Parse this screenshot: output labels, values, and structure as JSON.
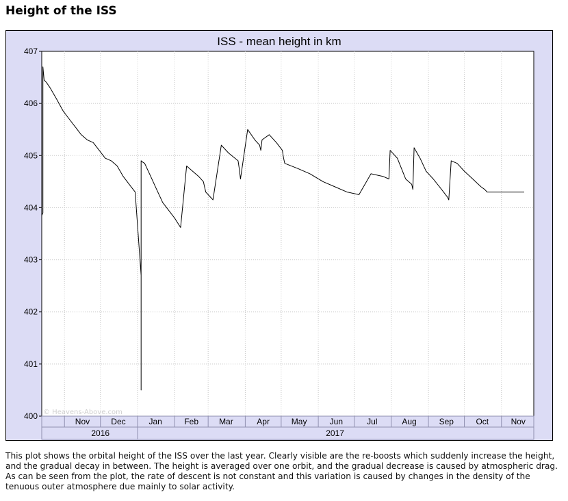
{
  "page": {
    "title": "Height of the ISS",
    "caption": "This plot shows the orbital height of the ISS over the last year. Clearly visible are the re-boosts which suddenly increase the height, and the gradual decay in between. The height is averaged over one orbit, and the gradual decrease is caused by atmospheric drag. As can be seen from the plot, the rate of descent is not constant and this variation is caused by changes in the density of the tenuous outer atmosphere due mainly to solar activity."
  },
  "chart_data": {
    "type": "line",
    "title": "ISS - mean height in km",
    "watermark": "© Heavens-Above.com",
    "xlabel": "",
    "ylabel": "",
    "ylim": [
      400,
      407
    ],
    "xlim": [
      "2016-10-13",
      "2017-11-28"
    ],
    "y_ticks": [
      400,
      401,
      402,
      403,
      404,
      405,
      406,
      407
    ],
    "month_ticks": [
      "2016-11-01",
      "2016-12-01",
      "2017-01-01",
      "2017-02-01",
      "2017-03-01",
      "2017-04-01",
      "2017-05-01",
      "2017-06-01",
      "2017-07-01",
      "2017-08-01",
      "2017-09-01",
      "2017-10-01",
      "2017-11-01"
    ],
    "month_labels": [
      {
        "label": "Nov",
        "date": "2016-11-16"
      },
      {
        "label": "Dec",
        "date": "2016-12-16"
      },
      {
        "label": "Jan",
        "date": "2017-01-16"
      },
      {
        "label": "Feb",
        "date": "2017-02-15"
      },
      {
        "label": "Mar",
        "date": "2017-03-16"
      },
      {
        "label": "Apr",
        "date": "2017-04-16"
      },
      {
        "label": "May",
        "date": "2017-05-16"
      },
      {
        "label": "Jun",
        "date": "2017-06-16"
      },
      {
        "label": "Jul",
        "date": "2017-07-16"
      },
      {
        "label": "Aug",
        "date": "2017-08-16"
      },
      {
        "label": "Sep",
        "date": "2017-09-16"
      },
      {
        "label": "Oct",
        "date": "2017-10-16"
      },
      {
        "label": "Nov",
        "date": "2017-11-15"
      }
    ],
    "year_labels": [
      {
        "label": "2016",
        "date": "2016-12-01"
      },
      {
        "label": "2017",
        "date": "2017-06-15"
      }
    ],
    "year_boundary": "2017-01-01",
    "grid": true,
    "series": [
      {
        "x": [
          "2016-10-13",
          "2016-10-14",
          "2016-10-14",
          "2016-10-15",
          "2016-10-17",
          "2016-10-20",
          "2016-10-25",
          "2016-10-31",
          "2016-11-05",
          "2016-11-10",
          "2016-11-15",
          "2016-11-20",
          "2016-11-25",
          "2016-11-30",
          "2016-12-05",
          "2016-12-10",
          "2016-12-15",
          "2016-12-20",
          "2016-12-25",
          "2016-12-30",
          "2017-01-04",
          "2017-01-04",
          "2017-01-04",
          "2017-01-04",
          "2017-01-05",
          "2017-01-07",
          "2017-01-12",
          "2017-01-17",
          "2017-01-22",
          "2017-01-27",
          "2017-02-01",
          "2017-02-06",
          "2017-02-11",
          "2017-02-16",
          "2017-02-21",
          "2017-02-25",
          "2017-02-26",
          "2017-02-27",
          "2017-03-05",
          "2017-03-12",
          "2017-03-18",
          "2017-03-26",
          "2017-03-27",
          "2017-03-28",
          "2017-04-03",
          "2017-04-09",
          "2017-04-13",
          "2017-04-14",
          "2017-04-15",
          "2017-04-21",
          "2017-04-27",
          "2017-05-02",
          "2017-05-03",
          "2017-05-04",
          "2017-05-15",
          "2017-05-25",
          "2017-06-05",
          "2017-06-15",
          "2017-06-25",
          "2017-07-05",
          "2017-07-15",
          "2017-07-25",
          "2017-07-30",
          "2017-07-31",
          "2017-08-06",
          "2017-08-13",
          "2017-08-18",
          "2017-08-19",
          "2017-08-20",
          "2017-08-25",
          "2017-08-30",
          "2017-09-05",
          "2017-09-12",
          "2017-09-17",
          "2017-09-18",
          "2017-09-20",
          "2017-09-25",
          "2017-10-01",
          "2017-10-08",
          "2017-10-15",
          "2017-10-18",
          "2017-10-20",
          "2017-10-21",
          "2017-10-22",
          "2017-10-26",
          "2017-11-02",
          "2017-11-09",
          "2017-11-15",
          "2017-11-20"
        ],
        "y": [
          403.85,
          403.9,
          406.7,
          406.45,
          406.4,
          406.3,
          406.1,
          405.85,
          405.7,
          405.55,
          405.4,
          405.3,
          405.25,
          405.1,
          404.95,
          404.9,
          404.8,
          404.6,
          404.45,
          404.3,
          402.7,
          400.5,
          404.9,
          404.9,
          404.88,
          404.85,
          404.6,
          404.35,
          404.1,
          403.95,
          403.8,
          403.62,
          404.8,
          404.7,
          404.6,
          404.5,
          404.4,
          404.3,
          404.15,
          405.2,
          405.05,
          404.9,
          404.75,
          404.55,
          405.5,
          405.3,
          405.2,
          405.1,
          405.3,
          405.4,
          405.25,
          405.1,
          404.95,
          404.85,
          404.75,
          404.65,
          404.5,
          404.4,
          404.3,
          404.25,
          404.65,
          404.6,
          404.55,
          405.1,
          404.95,
          404.55,
          404.45,
          404.35,
          405.15,
          404.95,
          404.7,
          404.55,
          404.35,
          404.2,
          404.15,
          404.9,
          404.85,
          404.7,
          404.55,
          404.4,
          404.35,
          404.3,
          404.3,
          404.3,
          404.3,
          404.3,
          404.3,
          404.3,
          404.3
        ],
        "name": ""
      }
    ]
  }
}
